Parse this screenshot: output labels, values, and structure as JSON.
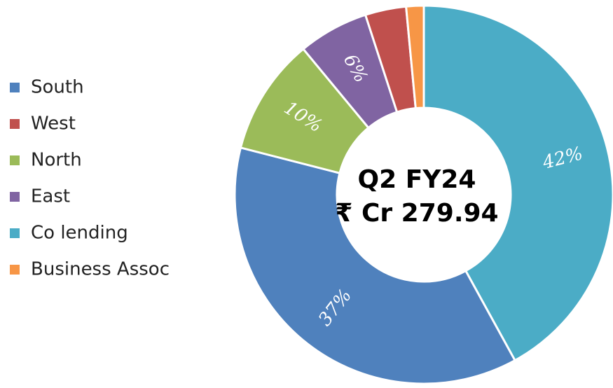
{
  "chart_data": {
    "type": "donut",
    "categories": [
      "South",
      "West",
      "North",
      "East",
      "Co lending",
      "Business Assoc"
    ],
    "values": [
      37,
      3.5,
      10,
      6,
      42,
      1.5
    ],
    "value_labels": [
      "37%",
      null,
      "10%",
      "6%",
      "42%",
      null
    ],
    "colors": [
      "#4f81bd",
      "#c0504d",
      "#9bbb59",
      "#8064a2",
      "#4bacc6",
      "#f79646"
    ],
    "center_label": [
      "Q2 FY24",
      "₹ Cr 279.94"
    ],
    "legend": "left"
  }
}
